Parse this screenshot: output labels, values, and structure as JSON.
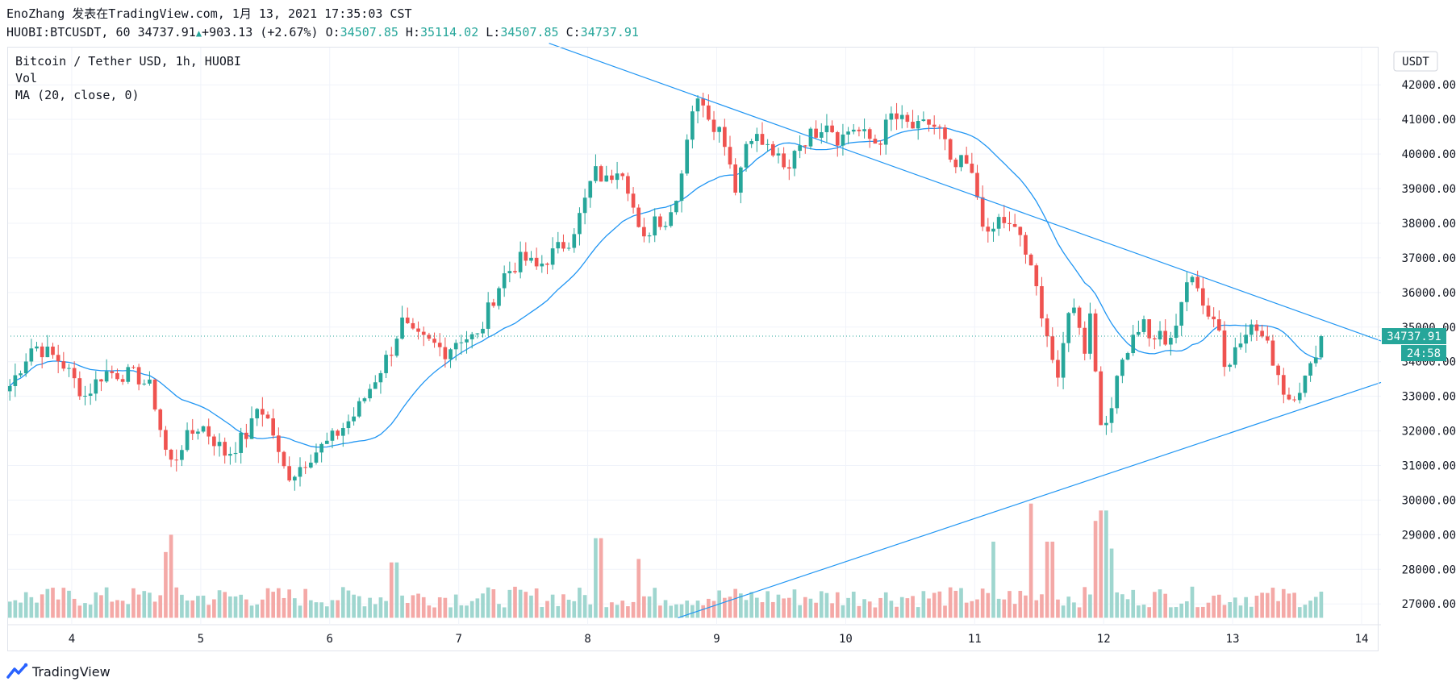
{
  "header": {
    "line1": "EnoZhang 发表在TradingView.com, 1月 13, 2021 17:35:03 CST",
    "symbol": "HUOBI:BTCUSDT, 60",
    "last": "34737.91",
    "change": "+903.13 (+2.67%)",
    "o_label": "O:",
    "o": "34507.85",
    "h_label": "H:",
    "h": "35114.02",
    "l_label": "L:",
    "l": "34507.85",
    "c_label": "C:",
    "c": "34737.91"
  },
  "legend": {
    "series": "Bitcoin / Tether USD, 1h, HUOBI",
    "vol": "Vol",
    "ma": "MA (20, close, 0)"
  },
  "footer": {
    "brand": "TradingView"
  },
  "colors": {
    "up": "#26a69a",
    "down": "#ef5350",
    "ma": "#2196f3",
    "trend": "#2196f3"
  },
  "chart_data": {
    "type": "candlestick",
    "currency": "USDT",
    "x_ticks": [
      "4",
      "5",
      "6",
      "7",
      "8",
      "9",
      "10",
      "11",
      "12",
      "13",
      "14"
    ],
    "x_range_days": [
      3.5,
      14.15
    ],
    "y_range": [
      26400,
      43100
    ],
    "y_ticks": [
      "27000.00",
      "28000.00",
      "29000.00",
      "30000.00",
      "31000.00",
      "32000.00",
      "33000.00",
      "34000.00",
      "35000.00",
      "36000.00",
      "37000.00",
      "38000.00",
      "39000.00",
      "40000.00",
      "41000.00",
      "42000.00"
    ],
    "last_price_label": "34737.91",
    "countdown_label": "24:58",
    "hourly_close_keypoints": [
      [
        3.52,
        33300
      ],
      [
        3.7,
        34500
      ],
      [
        3.92,
        34000
      ],
      [
        4.1,
        33000
      ],
      [
        4.25,
        33700
      ],
      [
        4.5,
        33600
      ],
      [
        4.62,
        33200
      ],
      [
        4.72,
        31500
      ],
      [
        4.78,
        31000
      ],
      [
        4.85,
        31600
      ],
      [
        5.0,
        32200
      ],
      [
        5.2,
        31300
      ],
      [
        5.38,
        32000
      ],
      [
        5.45,
        32800
      ],
      [
        5.55,
        32100
      ],
      [
        5.62,
        31000
      ],
      [
        5.7,
        30700
      ],
      [
        5.85,
        31300
      ],
      [
        6.0,
        31700
      ],
      [
        6.2,
        32500
      ],
      [
        6.35,
        33500
      ],
      [
        6.5,
        34500
      ],
      [
        6.55,
        35200
      ],
      [
        6.65,
        34700
      ],
      [
        6.8,
        34500
      ],
      [
        6.9,
        34300
      ],
      [
        7.0,
        34700
      ],
      [
        7.15,
        34700
      ],
      [
        7.25,
        35700
      ],
      [
        7.35,
        36500
      ],
      [
        7.5,
        37000
      ],
      [
        7.6,
        36700
      ],
      [
        7.75,
        37200
      ],
      [
        7.85,
        37500
      ],
      [
        7.95,
        38300
      ],
      [
        8.05,
        39500
      ],
      [
        8.15,
        39200
      ],
      [
        8.25,
        39800
      ],
      [
        8.32,
        39000
      ],
      [
        8.42,
        37300
      ],
      [
        8.52,
        38200
      ],
      [
        8.62,
        38000
      ],
      [
        8.72,
        39300
      ],
      [
        8.8,
        41300
      ],
      [
        8.9,
        41600
      ],
      [
        8.95,
        41000
      ],
      [
        9.05,
        40600
      ],
      [
        9.15,
        39000
      ],
      [
        9.25,
        40700
      ],
      [
        9.35,
        40300
      ],
      [
        9.45,
        40000
      ],
      [
        9.55,
        39300
      ],
      [
        9.6,
        40200
      ],
      [
        9.75,
        40600
      ],
      [
        9.85,
        41000
      ],
      [
        9.95,
        40400
      ],
      [
        10.05,
        40800
      ],
      [
        10.15,
        40500
      ],
      [
        10.25,
        40300
      ],
      [
        10.35,
        41100
      ],
      [
        10.45,
        40900
      ],
      [
        10.55,
        40700
      ],
      [
        10.65,
        40900
      ],
      [
        10.75,
        40600
      ],
      [
        10.82,
        39500
      ],
      [
        10.92,
        39800
      ],
      [
        11.0,
        39100
      ],
      [
        11.1,
        37500
      ],
      [
        11.2,
        38200
      ],
      [
        11.28,
        37800
      ],
      [
        11.35,
        37700
      ],
      [
        11.42,
        36800
      ],
      [
        11.5,
        35800
      ],
      [
        11.58,
        34500
      ],
      [
        11.65,
        33200
      ],
      [
        11.72,
        35600
      ],
      [
        11.8,
        35400
      ],
      [
        11.85,
        34300
      ],
      [
        11.9,
        35500
      ],
      [
        11.95,
        33200
      ],
      [
        12.0,
        31800
      ],
      [
        12.05,
        32300
      ],
      [
        12.1,
        33800
      ],
      [
        12.2,
        34500
      ],
      [
        12.3,
        35200
      ],
      [
        12.4,
        34400
      ],
      [
        12.45,
        35000
      ],
      [
        12.5,
        34200
      ],
      [
        12.58,
        35500
      ],
      [
        12.65,
        36400
      ],
      [
        12.75,
        36000
      ],
      [
        12.82,
        35400
      ],
      [
        12.9,
        35000
      ],
      [
        12.95,
        33500
      ],
      [
        13.02,
        34500
      ],
      [
        13.1,
        35000
      ],
      [
        13.2,
        34900
      ],
      [
        13.3,
        34200
      ],
      [
        13.35,
        33700
      ],
      [
        13.42,
        32900
      ],
      [
        13.55,
        33400
      ],
      [
        13.62,
        33900
      ],
      [
        13.68,
        35000
      ],
      [
        13.72,
        34737.91
      ]
    ],
    "volume_spikes_day_val": [
      [
        4.72,
        28500
      ],
      [
        4.78,
        29000
      ],
      [
        6.5,
        28200
      ],
      [
        8.08,
        28900
      ],
      [
        8.4,
        28300
      ],
      [
        11.15,
        28800
      ],
      [
        11.45,
        29900
      ],
      [
        11.58,
        28800
      ],
      [
        11.95,
        29400
      ],
      [
        12.0,
        29700
      ],
      [
        12.05,
        28600
      ]
    ],
    "trendlines": [
      {
        "from": [
          7.7,
          43200
        ],
        "to": [
          14.15,
          34600
        ]
      },
      {
        "from": [
          8.7,
          26600
        ],
        "to": [
          14.15,
          33400
        ]
      }
    ]
  }
}
